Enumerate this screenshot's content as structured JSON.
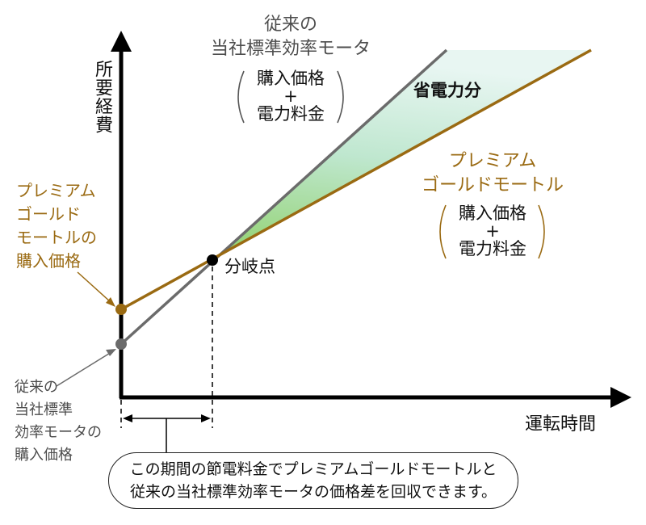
{
  "axes": {
    "y_label": "所要経費",
    "x_label": "運転時間"
  },
  "conventional_line": {
    "title_line1": "従来の",
    "title_line2": "当社標準効率モータ",
    "cost_line1": "購入価格",
    "cost_plus": "+",
    "cost_line2": "電力料金",
    "color": "#6b6b6b"
  },
  "premium_line": {
    "title_line1": "プレミアム",
    "title_line2": "ゴールドモートル",
    "cost_line1": "購入価格",
    "cost_plus": "+",
    "cost_line2": "電力料金",
    "color": "#9a6a12"
  },
  "savings_label": "省電力分",
  "branch_point_label": "分岐点",
  "premium_price_label": [
    "プレミアム",
    "ゴールド",
    "モートルの",
    "購入価格"
  ],
  "conventional_price_label": [
    "従来の",
    "当社標準",
    "効率モータの",
    "購入価格"
  ],
  "callout": {
    "line1": "この期間の節電料金でプレミアムゴールドモートルと",
    "line2": "従来の当社標準効率モータの価格差を回収できます。"
  }
}
